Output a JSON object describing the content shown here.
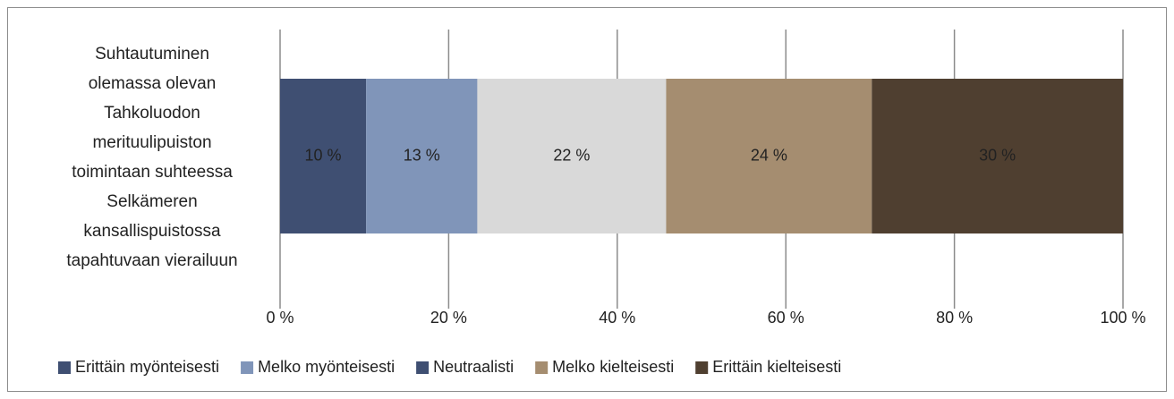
{
  "chart_data": {
    "type": "stacked-bar-horizontal",
    "categories": [
      "Suhtautuminen\nolemassa olevan\nTahkoluodon\nmerituulipuiston\ntoimintaan suhteessa\nSelkämeren\nkansallispuistossa\ntapahtuvaan vierailuun"
    ],
    "series": [
      {
        "name": "Erittäin myönteisesti",
        "color": "#3f4f72",
        "values": [
          10.2
        ],
        "value_labels": [
          "10 %"
        ]
      },
      {
        "name": "Melko myönteisesti",
        "color": "#8095b9",
        "values": [
          13.2
        ],
        "value_labels": [
          "13 %"
        ]
      },
      {
        "name": "Neutraalisti",
        "color": "#d9d9d9",
        "legend_color": "#3f4f72",
        "values": [
          22.4
        ],
        "value_labels": [
          "22 %"
        ]
      },
      {
        "name": "Melko kielteisesti",
        "color": "#a58d70",
        "values": [
          24.4
        ],
        "value_labels": [
          "24 %"
        ]
      },
      {
        "name": "Erittäin kielteisesti",
        "color": "#4f3f30",
        "values": [
          29.8
        ],
        "value_labels": [
          "30 %"
        ]
      }
    ],
    "xlim": [
      0,
      100
    ],
    "xticks": [
      {
        "value": 0,
        "label": "0 %"
      },
      {
        "value": 20,
        "label": "20 %"
      },
      {
        "value": 40,
        "label": "40 %"
      },
      {
        "value": 60,
        "label": "60 %"
      },
      {
        "value": 80,
        "label": "80 %"
      },
      {
        "value": 100,
        "label": "100 %"
      }
    ],
    "grid": true,
    "legend": "bottom"
  }
}
